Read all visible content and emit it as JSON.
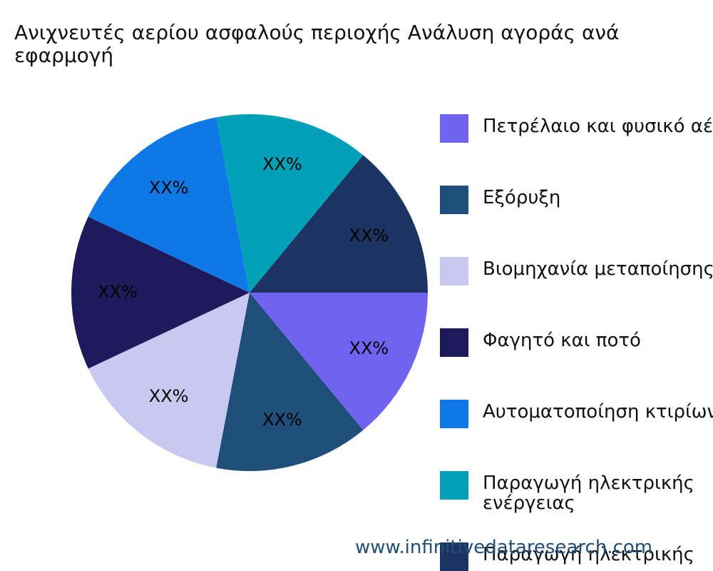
{
  "chart_data": {
    "type": "pie",
    "title": "Ανιχνευτές αερίου ασφαλούς περιοχής Ανάλυση αγοράς ανά εφαρμογή",
    "categories": [
      "Πετρέλαιο και φυσικό αέριο",
      "Εξόρυξη",
      "Βιομηχανία μεταποίησης",
      "Φαγητό και ποτό",
      "Αυτοματοποίηση κτιρίων",
      "Παραγωγή ηλεκτρικής ενέργειας",
      "Παραγωγή ηλεκτρικής"
    ],
    "values": [
      14,
      14,
      15,
      14,
      15,
      14,
      14
    ],
    "value_labels": [
      "XX%",
      "XX%",
      "XX%",
      "XX%",
      "XX%",
      "XX%",
      "XX%"
    ],
    "colors": [
      "#7063f0",
      "#1f4e7a",
      "#c8c8f0",
      "#1e1a5c",
      "#0e78e6",
      "#00a0b8",
      "#1c3461"
    ],
    "legend": "right"
  },
  "watermark": "www.infinitivedataresearch.com"
}
